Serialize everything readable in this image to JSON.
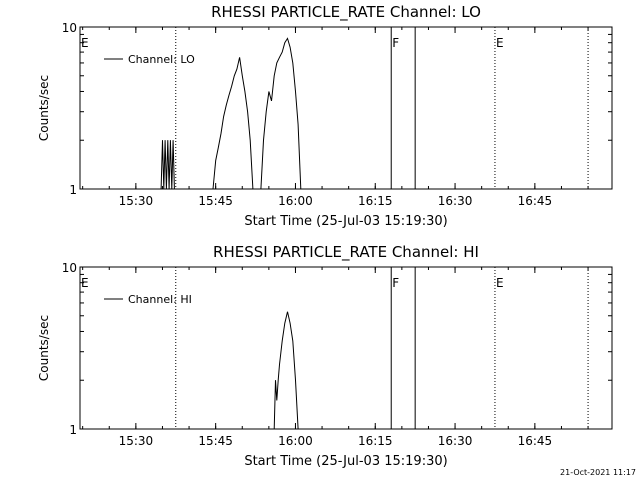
{
  "chart_data": [
    {
      "type": "line",
      "title": "RHESSI PARTICLE_RATE Channel: LO",
      "xlabel": "Start Time (25-Jul-03 15:19:30)",
      "ylabel": "Counts/sec",
      "xlim": [
        "15:19:30",
        "16:59:30"
      ],
      "ylim": [
        1,
        10
      ],
      "yscale": "log",
      "xticks": [
        "15:30",
        "15:45",
        "16:00",
        "16:15",
        "16:30",
        "16:45"
      ],
      "yticks": [
        "1",
        "10"
      ],
      "legend": {
        "label": "Channel: LO",
        "position": "top-left"
      },
      "markers": [
        {
          "time": "15:37:30",
          "label": "",
          "style": "dotted"
        },
        {
          "time": "16:37:30",
          "label": "E",
          "style": "dotted"
        },
        {
          "time": "16:55:00",
          "label": "",
          "style": "dotted"
        },
        {
          "time": "16:18:00",
          "label": "F",
          "style": "solid"
        },
        {
          "time": "16:22:30",
          "label": "",
          "style": "solid"
        },
        {
          "time": "15:19:30",
          "label": "E",
          "style": "label"
        }
      ],
      "series": [
        {
          "name": "Channel: LO",
          "segments": [
            [
              [
                "15:34:45",
                1
              ],
              [
                "15:35:00",
                2
              ],
              [
                "15:35:15",
                1
              ],
              [
                "15:35:30",
                2
              ],
              [
                "15:35:45",
                1
              ],
              [
                "15:36:00",
                2
              ],
              [
                "15:36:15",
                1
              ],
              [
                "15:36:30",
                2
              ],
              [
                "15:36:45",
                1
              ],
              [
                "15:37:00",
                2
              ],
              [
                "15:37:15",
                1
              ]
            ],
            [
              [
                "15:44:30",
                1
              ],
              [
                "15:45:00",
                1.5
              ],
              [
                "15:45:30",
                1.8
              ],
              [
                "15:46:00",
                2.2
              ],
              [
                "15:46:30",
                2.8
              ],
              [
                "15:47:00",
                3.3
              ],
              [
                "15:47:30",
                3.8
              ],
              [
                "15:48:00",
                4.3
              ],
              [
                "15:48:30",
                5.0
              ],
              [
                "15:49:00",
                5.5
              ],
              [
                "15:49:30",
                6.5
              ],
              [
                "15:50:00",
                5.0
              ],
              [
                "15:50:30",
                4.0
              ],
              [
                "15:51:00",
                3.0
              ],
              [
                "15:51:30",
                2.0
              ],
              [
                "15:52:00",
                1
              ]
            ],
            [
              [
                "15:53:30",
                1
              ],
              [
                "15:54:00",
                2.0
              ],
              [
                "15:54:30",
                3.0
              ],
              [
                "15:55:00",
                4.0
              ],
              [
                "15:55:30",
                3.5
              ],
              [
                "15:56:00",
                5.0
              ],
              [
                "15:56:30",
                6.0
              ],
              [
                "15:57:00",
                6.5
              ],
              [
                "15:57:30",
                7.0
              ],
              [
                "15:58:00",
                8.0
              ],
              [
                "15:58:30",
                8.5
              ],
              [
                "15:59:00",
                7.5
              ],
              [
                "15:59:30",
                6.0
              ],
              [
                "16:00:00",
                4.0
              ],
              [
                "16:00:30",
                2.5
              ],
              [
                "16:01:00",
                1
              ]
            ]
          ]
        }
      ]
    },
    {
      "type": "line",
      "title": "RHESSI PARTICLE_RATE Channel: HI",
      "xlabel": "Start Time (25-Jul-03 15:19:30)",
      "ylabel": "Counts/sec",
      "xlim": [
        "15:19:30",
        "16:59:30"
      ],
      "ylim": [
        1,
        10
      ],
      "yscale": "log",
      "xticks": [
        "15:30",
        "15:45",
        "16:00",
        "16:15",
        "16:30",
        "16:45"
      ],
      "yticks": [
        "1",
        "10"
      ],
      "legend": {
        "label": "Channel: HI",
        "position": "top-left"
      },
      "markers": [
        {
          "time": "15:37:30",
          "label": "",
          "style": "dotted"
        },
        {
          "time": "16:37:30",
          "label": "E",
          "style": "dotted"
        },
        {
          "time": "16:55:00",
          "label": "",
          "style": "dotted"
        },
        {
          "time": "16:18:00",
          "label": "F",
          "style": "solid"
        },
        {
          "time": "16:22:30",
          "label": "",
          "style": "solid"
        },
        {
          "time": "15:19:30",
          "label": "E",
          "style": "label"
        }
      ],
      "series": [
        {
          "name": "Channel: HI",
          "segments": [
            [
              [
                "15:56:00",
                1
              ],
              [
                "15:56:15",
                2.0
              ],
              [
                "15:56:30",
                1.5
              ],
              [
                "15:56:45",
                2.0
              ],
              [
                "15:57:00",
                2.5
              ],
              [
                "15:57:30",
                3.5
              ],
              [
                "15:58:00",
                4.5
              ],
              [
                "15:58:30",
                5.3
              ],
              [
                "15:59:00",
                4.5
              ],
              [
                "15:59:30",
                3.5
              ],
              [
                "16:00:00",
                2.0
              ],
              [
                "16:00:30",
                1
              ]
            ]
          ]
        }
      ]
    }
  ],
  "footer": {
    "timestamp": "21-Oct-2021 11:17"
  }
}
